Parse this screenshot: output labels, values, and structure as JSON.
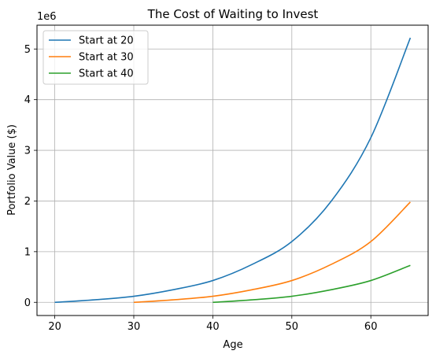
{
  "chart_data": {
    "type": "line",
    "title": "The Cost of Waiting to Invest",
    "xlabel": "Age",
    "ylabel": "Portfolio Value ($)",
    "y_offset_label": "1e6",
    "xlim": [
      17.75,
      67.25
    ],
    "ylim": [
      -0.26,
      5.47
    ],
    "x_ticks": [
      20,
      30,
      40,
      50,
      60
    ],
    "y_ticks": [
      0,
      1,
      2,
      3,
      4,
      5
    ],
    "grid": true,
    "legend_position": "top-left",
    "series": [
      {
        "name": "Start at 20",
        "color": "#1f77b4",
        "x": [
          20,
          25,
          30,
          35,
          40,
          45,
          50,
          55,
          60,
          65
        ],
        "y": [
          0.0,
          0.05,
          0.12,
          0.25,
          0.43,
          0.75,
          1.2,
          2.0,
          3.25,
          5.22
        ]
      },
      {
        "name": "Start at 30",
        "color": "#ff7f0e",
        "x": [
          30,
          35,
          40,
          45,
          50,
          55,
          60,
          65
        ],
        "y": [
          0.0,
          0.05,
          0.12,
          0.25,
          0.43,
          0.75,
          1.2,
          1.98
        ]
      },
      {
        "name": "Start at 40",
        "color": "#2ca02c",
        "x": [
          40,
          45,
          50,
          55,
          60,
          65
        ],
        "y": [
          0.0,
          0.05,
          0.12,
          0.25,
          0.43,
          0.73
        ]
      }
    ]
  }
}
